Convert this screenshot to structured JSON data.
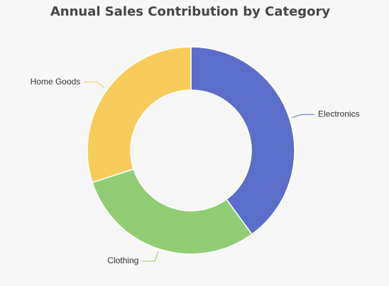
{
  "chart_data": {
    "type": "donut",
    "title": "Annual Sales Contribution by Category",
    "categories": [
      "Electronics",
      "Clothing",
      "Home Goods"
    ],
    "values": [
      40,
      30,
      30
    ],
    "colors": [
      "#5b6ec9",
      "#90cd75",
      "#f8cc5c"
    ]
  }
}
